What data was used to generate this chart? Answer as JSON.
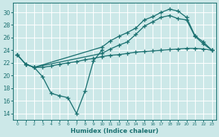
{
  "xlabel": "Humidex (Indice chaleur)",
  "bg_color": "#cce8e8",
  "grid_color": "#ffffff",
  "line_color": "#1a7070",
  "xlim": [
    -0.5,
    23.5
  ],
  "ylim": [
    13.0,
    31.5
  ],
  "yticks": [
    14,
    16,
    18,
    20,
    22,
    24,
    26,
    28,
    30
  ],
  "xticks": [
    0,
    1,
    2,
    3,
    4,
    5,
    6,
    7,
    8,
    9,
    10,
    11,
    12,
    13,
    14,
    15,
    16,
    17,
    18,
    19,
    20,
    21,
    22,
    23
  ],
  "line_upper_x": [
    0,
    1,
    2,
    10,
    11,
    12,
    13,
    14,
    15,
    16,
    17,
    18,
    19,
    20,
    21,
    22,
    23
  ],
  "line_upper_y": [
    23.3,
    21.8,
    21.3,
    24.5,
    25.5,
    26.2,
    26.8,
    27.5,
    28.8,
    29.3,
    30.0,
    30.5,
    30.2,
    29.2,
    26.3,
    25.3,
    24.0
  ],
  "line_mid_x": [
    0,
    1,
    2,
    10,
    11,
    12,
    13,
    14,
    15,
    16,
    17,
    18,
    19,
    20,
    21,
    22,
    23
  ],
  "line_mid_y": [
    23.3,
    21.8,
    21.3,
    23.5,
    24.2,
    24.8,
    25.3,
    26.5,
    27.8,
    28.5,
    29.2,
    29.5,
    29.0,
    28.8,
    26.2,
    25.0,
    24.0
  ],
  "line_flat_x": [
    0,
    1,
    2,
    3,
    4,
    5,
    6,
    7,
    8,
    9,
    10,
    11,
    12,
    13,
    14,
    15,
    16,
    17,
    18,
    19,
    20,
    21,
    22,
    23
  ],
  "line_flat_y": [
    23.3,
    21.8,
    21.3,
    21.3,
    21.5,
    21.8,
    22.0,
    22.2,
    22.5,
    22.7,
    23.0,
    23.2,
    23.3,
    23.5,
    23.7,
    23.8,
    23.9,
    24.0,
    24.1,
    24.2,
    24.3,
    24.3,
    24.2,
    24.0
  ],
  "line_dip_x": [
    1,
    2,
    3,
    4,
    5,
    6,
    7,
    8,
    9,
    10
  ],
  "line_dip_y": [
    21.8,
    21.3,
    19.8,
    17.2,
    16.8,
    16.5,
    14.0,
    17.5,
    22.3,
    24.0
  ],
  "marker": "+",
  "markersize": 4,
  "linewidth": 1.0
}
